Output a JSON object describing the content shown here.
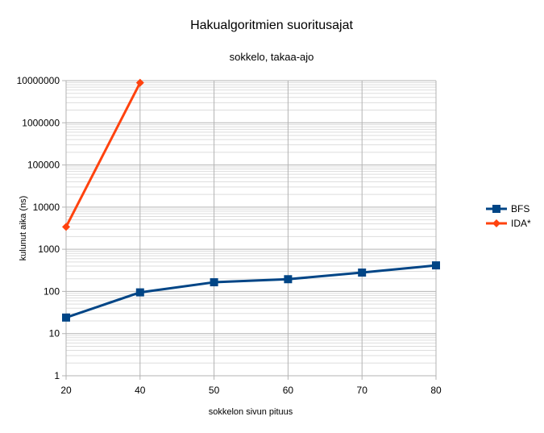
{
  "chart_data": {
    "type": "line",
    "title": "Hakualgoritmien suoritusajat",
    "subtitle": "sokkelo, takaa-ajo",
    "xlabel": "sokkelon sivun pituus",
    "ylabel": "kulunut aika (ns)",
    "x_ticks": [
      "20",
      "40",
      "50",
      "60",
      "70",
      "80"
    ],
    "y_scale": "log",
    "ylim": [
      1,
      10000000
    ],
    "y_ticks": [
      "1",
      "10",
      "100",
      "1000",
      "10000",
      "100000",
      "1000000",
      "10000000"
    ],
    "grid": true,
    "legend_position": "right",
    "series": [
      {
        "name": "BFS",
        "color": "#004586",
        "marker": "square",
        "points": [
          {
            "x": "20",
            "y": 24
          },
          {
            "x": "40",
            "y": 95
          },
          {
            "x": "50",
            "y": 165
          },
          {
            "x": "60",
            "y": 195
          },
          {
            "x": "70",
            "y": 280
          },
          {
            "x": "80",
            "y": 415
          }
        ]
      },
      {
        "name": "IDA*",
        "color": "#ff420e",
        "marker": "diamond",
        "points": [
          {
            "x": "20",
            "y": 3400
          },
          {
            "x": "40",
            "y": 8900000
          }
        ]
      }
    ]
  }
}
